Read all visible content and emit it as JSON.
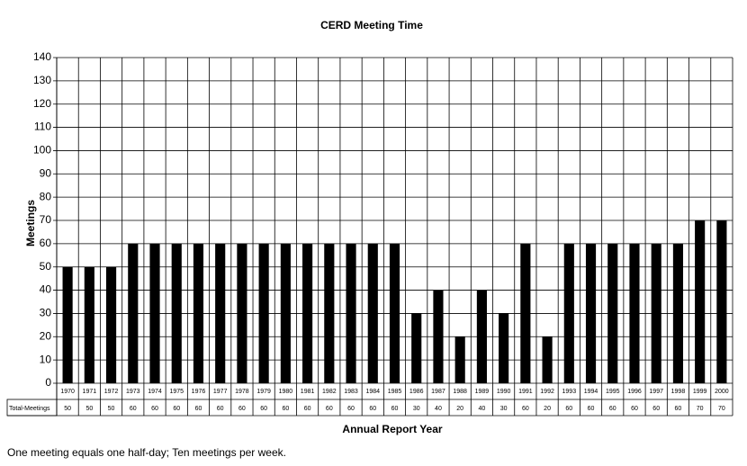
{
  "chart_data": {
    "type": "bar",
    "title": "CERD Meeting Time",
    "x_label": "Annual Report Year",
    "y_label": "Meetings",
    "categories": [
      "1970",
      "1971",
      "1972",
      "1973",
      "1974",
      "1975",
      "1976",
      "1977",
      "1978",
      "1979",
      "1980",
      "1981",
      "1982",
      "1983",
      "1984",
      "1985",
      "1986",
      "1987",
      "1988",
      "1989",
      "1990",
      "1991",
      "1992",
      "1993",
      "1994",
      "1995",
      "1996",
      "1997",
      "1998",
      "1999",
      "2000"
    ],
    "values": [
      50,
      50,
      50,
      60,
      60,
      60,
      60,
      60,
      60,
      60,
      60,
      60,
      60,
      60,
      60,
      60,
      30,
      40,
      20,
      40,
      30,
      60,
      20,
      60,
      60,
      60,
      60,
      60,
      60,
      70,
      70
    ],
    "color": "#000000",
    "ylim": [
      0,
      140
    ],
    "yticks": [
      0,
      10,
      20,
      30,
      40,
      50,
      60,
      70,
      80,
      90,
      100,
      110,
      120,
      130,
      140
    ],
    "grid": true,
    "table_row_label": "Total-Meetings",
    "footnote": "One meeting equals one half-day; Ten meetings per week."
  }
}
